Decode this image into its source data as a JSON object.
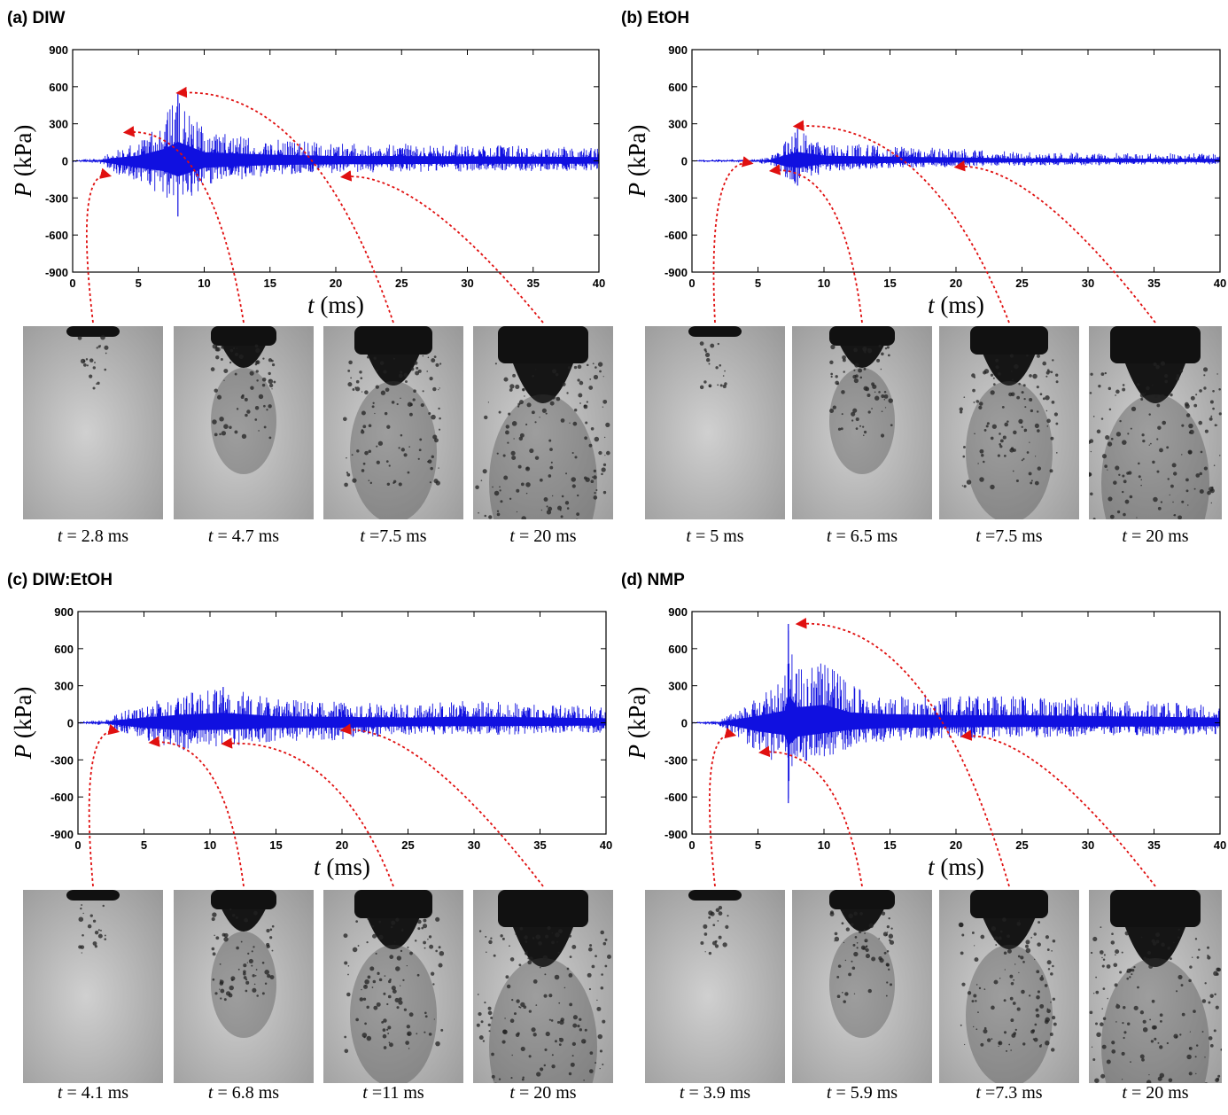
{
  "panels": [
    {
      "label": "(a) DIW",
      "ylabel_symbol": "P",
      "ylabel_unit": "(kPa)",
      "xlabel_symbol": "t",
      "xlabel_unit": "(ms)",
      "frames": [
        {
          "caption_symbol": "t",
          "caption_value": "= 2.8 ms"
        },
        {
          "caption_symbol": "t",
          "caption_value": "= 4.7 ms"
        },
        {
          "caption_symbol": "t",
          "caption_value": "=7.5 ms"
        },
        {
          "caption_symbol": "t",
          "caption_value": "= 20 ms"
        }
      ]
    },
    {
      "label": "(b) EtOH",
      "ylabel_symbol": "P",
      "ylabel_unit": "(kPa)",
      "xlabel_symbol": "t",
      "xlabel_unit": "(ms)",
      "frames": [
        {
          "caption_symbol": "t",
          "caption_value": "= 5 ms"
        },
        {
          "caption_symbol": "t",
          "caption_value": "= 6.5 ms"
        },
        {
          "caption_symbol": "t",
          "caption_value": "=7.5 ms"
        },
        {
          "caption_symbol": "t",
          "caption_value": "= 20 ms"
        }
      ]
    },
    {
      "label": "(c) DIW:EtOH",
      "ylabel_symbol": "P",
      "ylabel_unit": "(kPa)",
      "xlabel_symbol": "t",
      "xlabel_unit": "(ms)",
      "frames": [
        {
          "caption_symbol": "t",
          "caption_value": "= 4.1 ms"
        },
        {
          "caption_symbol": "t",
          "caption_value": "= 6.8 ms"
        },
        {
          "caption_symbol": "t",
          "caption_value": "=11 ms"
        },
        {
          "caption_symbol": "t",
          "caption_value": "= 20 ms"
        }
      ]
    },
    {
      "label": "(d) NMP",
      "ylabel_symbol": "P",
      "ylabel_unit": "(kPa)",
      "xlabel_symbol": "t",
      "xlabel_unit": "(ms)",
      "frames": [
        {
          "caption_symbol": "t",
          "caption_value": "= 3.9 ms"
        },
        {
          "caption_symbol": "t",
          "caption_value": "= 5.9 ms"
        },
        {
          "caption_symbol": "t",
          "caption_value": "=7.3 ms"
        },
        {
          "caption_symbol": "t",
          "caption_value": "= 20 ms"
        }
      ]
    }
  ],
  "colors": {
    "signal": "#1010e0",
    "arrow": "#e01010",
    "axis": "#000000"
  },
  "chart_data": [
    {
      "type": "line",
      "title": "(a) DIW",
      "xlabel": "t (ms)",
      "ylabel": "P (kPa)",
      "xlim": [
        0,
        40
      ],
      "ylim": [
        -900,
        900
      ],
      "xticks": [
        0,
        5,
        10,
        15,
        20,
        25,
        30,
        35,
        40
      ],
      "yticks": [
        900,
        600,
        300,
        0,
        -300,
        -600,
        -900
      ],
      "grid": false,
      "envelope": {
        "x": [
          0,
          2,
          3,
          5,
          7,
          8,
          10,
          15,
          20,
          25,
          40
        ],
        "upper": [
          10,
          20,
          80,
          150,
          350,
          550,
          250,
          180,
          140,
          140,
          110
        ],
        "lower": [
          -10,
          -20,
          -80,
          -200,
          -300,
          -450,
          -200,
          -120,
          -100,
          -90,
          -80
        ]
      },
      "annotated_points": [
        {
          "x": 2.8,
          "y": -120
        },
        {
          "x": 4.0,
          "y": 230
        },
        {
          "x": 8.0,
          "y": 550
        },
        {
          "x": 20.5,
          "y": -130
        }
      ]
    },
    {
      "type": "line",
      "title": "(b) EtOH",
      "xlabel": "t (ms)",
      "ylabel": "P (kPa)",
      "xlim": [
        0,
        40
      ],
      "ylim": [
        -900,
        900
      ],
      "xticks": [
        0,
        5,
        10,
        15,
        20,
        25,
        30,
        35,
        40
      ],
      "yticks": [
        900,
        600,
        300,
        0,
        -300,
        -600,
        -900
      ],
      "grid": false,
      "envelope": {
        "x": [
          0,
          5,
          6,
          7,
          8,
          10,
          15,
          20,
          25,
          40
        ],
        "upper": [
          10,
          15,
          40,
          150,
          260,
          150,
          120,
          100,
          70,
          60
        ],
        "lower": [
          -10,
          -15,
          -40,
          -150,
          -200,
          -90,
          -60,
          -50,
          -40,
          -30
        ]
      },
      "annotated_points": [
        {
          "x": 4.5,
          "y": -20
        },
        {
          "x": 6.0,
          "y": -80
        },
        {
          "x": 7.8,
          "y": 280
        },
        {
          "x": 20.0,
          "y": -50
        }
      ]
    },
    {
      "type": "line",
      "title": "(c) DIW:EtOH",
      "xlabel": "t (ms)",
      "ylabel": "P (kPa)",
      "xlim": [
        0,
        40
      ],
      "ylim": [
        -900,
        900
      ],
      "xticks": [
        0,
        5,
        10,
        15,
        20,
        25,
        30,
        35,
        40
      ],
      "yticks": [
        900,
        600,
        300,
        0,
        -300,
        -600,
        -900
      ],
      "grid": false,
      "envelope": {
        "x": [
          0,
          2,
          3,
          5,
          8,
          11,
          15,
          20,
          25,
          30,
          40
        ],
        "upper": [
          10,
          20,
          80,
          150,
          240,
          290,
          190,
          170,
          150,
          180,
          130
        ],
        "lower": [
          -10,
          -20,
          -60,
          -150,
          -220,
          -200,
          -150,
          -140,
          -100,
          -100,
          -80
        ]
      },
      "annotated_points": [
        {
          "x": 3.0,
          "y": -70
        },
        {
          "x": 5.5,
          "y": -160
        },
        {
          "x": 11.0,
          "y": -170
        },
        {
          "x": 20.0,
          "y": -60
        }
      ]
    },
    {
      "type": "line",
      "title": "(d) NMP",
      "xlabel": "t (ms)",
      "ylabel": "P (kPa)",
      "xlim": [
        0,
        40
      ],
      "ylim": [
        -900,
        900
      ],
      "xticks": [
        0,
        5,
        10,
        15,
        20,
        25,
        30,
        35,
        40
      ],
      "yticks": [
        900,
        600,
        300,
        0,
        -300,
        -600,
        -900
      ],
      "grid": false,
      "envelope": {
        "x": [
          0,
          2,
          3,
          5,
          7,
          7.3,
          8,
          10,
          12,
          15,
          20,
          25,
          40
        ],
        "upper": [
          10,
          20,
          80,
          200,
          350,
          800,
          450,
          520,
          300,
          250,
          220,
          220,
          150
        ],
        "lower": [
          -10,
          -20,
          -80,
          -250,
          -350,
          -650,
          -400,
          -300,
          -200,
          -150,
          -130,
          -120,
          -100
        ]
      },
      "annotated_points": [
        {
          "x": 3.2,
          "y": -100
        },
        {
          "x": 5.2,
          "y": -240
        },
        {
          "x": 8.0,
          "y": 800
        },
        {
          "x": 20.5,
          "y": -110
        }
      ]
    }
  ]
}
